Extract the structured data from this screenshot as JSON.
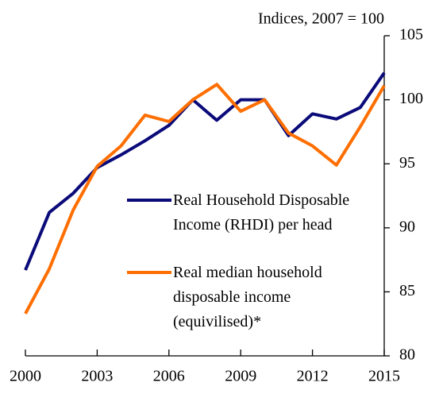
{
  "chart_data": {
    "type": "line",
    "y_axis_label": "Indices, 2007 = 100",
    "x": [
      2000,
      2001,
      2002,
      2003,
      2004,
      2005,
      2006,
      2007,
      2008,
      2009,
      2010,
      2011,
      2012,
      2013,
      2014,
      2015
    ],
    "xlim": [
      2000,
      2015
    ],
    "xticks": [
      2000,
      2003,
      2006,
      2009,
      2012,
      2015
    ],
    "ylim": [
      80,
      105
    ],
    "yticks": [
      80,
      85,
      90,
      95,
      100,
      105
    ],
    "y_axis_side": "right",
    "grid": false,
    "legend": "center",
    "series": [
      {
        "name": "Real Household Disposable Income (RHDI) per head",
        "color": "#0a0a7a",
        "values": [
          86.7,
          91.2,
          92.7,
          94.7,
          95.7,
          96.8,
          98.0,
          100.0,
          98.4,
          100.0,
          100.0,
          97.2,
          98.9,
          98.5,
          99.4,
          102.1
        ]
      },
      {
        "name": "Real median household disposable income (equivilised)*",
        "color": "#ff6e00",
        "values": [
          83.3,
          86.8,
          91.4,
          94.8,
          96.4,
          98.8,
          98.3,
          100.0,
          101.2,
          99.1,
          100.0,
          97.4,
          96.4,
          94.9,
          97.9,
          101.1
        ]
      }
    ]
  }
}
